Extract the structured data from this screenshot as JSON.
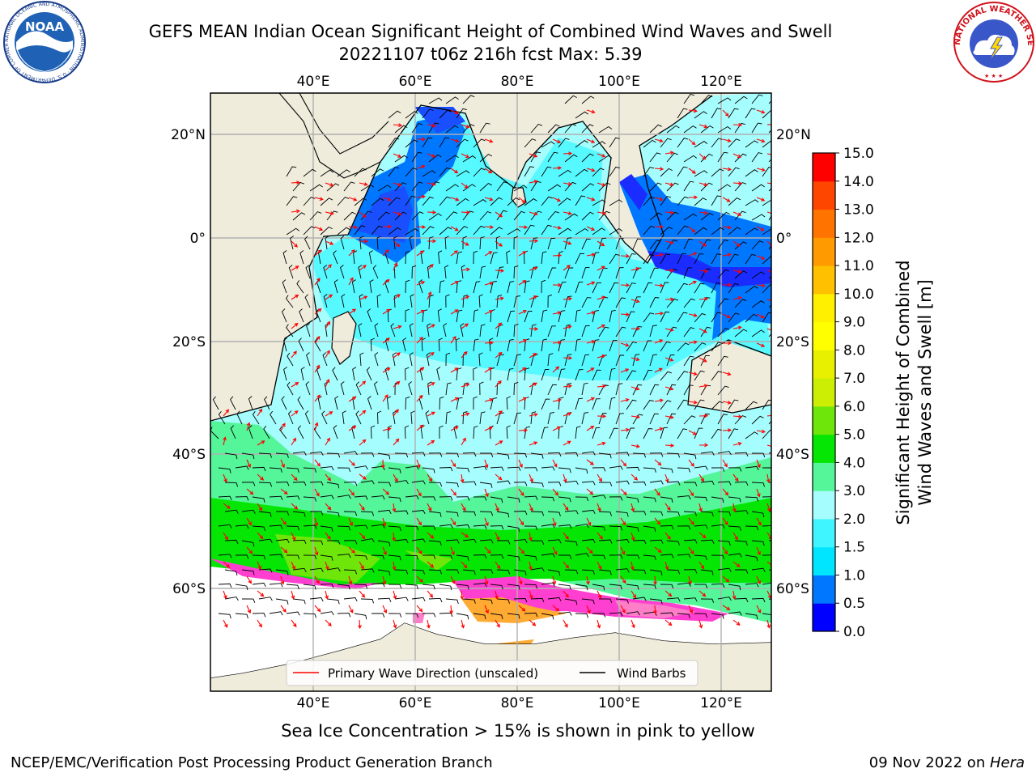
{
  "header": {
    "title_line1": "GEFS MEAN Indian Ocean Significant Height of Combined Wind Waves and Swell",
    "title_line2": "20221107 t06z 216h fcst   Max: 5.39"
  },
  "logos": {
    "noaa_text": "NOAA",
    "noaa_ring_text": "NATIONAL OCEANIC AND ATMOSPHERIC ADMINISTRATION · U.S. DEPARTMENT OF COMMERCE",
    "nws_ring_text": "NATIONAL WEATHER SERVICE"
  },
  "map": {
    "lon_range": [
      20,
      130
    ],
    "lat_range": [
      -75,
      27
    ],
    "lon_ticks": [
      "40°E",
      "60°E",
      "80°E",
      "100°E",
      "120°E"
    ],
    "lon_tick_values": [
      40,
      60,
      80,
      100,
      120
    ],
    "lat_ticks": [
      "20°N",
      "0°",
      "20°S",
      "40°S",
      "60°S"
    ],
    "lat_tick_values": [
      20,
      0,
      -20,
      -40,
      -60
    ],
    "grid": true,
    "colors": {
      "land": "#efecdc",
      "ice_white": "#ffffff",
      "barb": "#000000",
      "wave_arrow": "#ff0000"
    }
  },
  "legend": {
    "position": "bottom-center",
    "primary_wave_label": "Primary Wave Direction (unscaled)",
    "wind_barbs_label": "Wind Barbs"
  },
  "colorbar": {
    "label_line1": "Significant Height of Combined",
    "label_line2": "Wind Waves and Swell [m]",
    "tick_labels": [
      "0.0",
      "0.5",
      "1.0",
      "1.5",
      "2.0",
      "3.0",
      "4.0",
      "5.0",
      "6.0",
      "7.0",
      "8.0",
      "9.0",
      "10.0",
      "11.0",
      "12.0",
      "13.0",
      "14.0",
      "15.0"
    ],
    "colors": [
      "#0000ff",
      "#0077ff",
      "#00e5ff",
      "#3ff5ff",
      "#a5fdfd",
      "#55f59a",
      "#05e605",
      "#6ee60a",
      "#cbee04",
      "#e8f000",
      "#ffff00",
      "#fff000",
      "#ffc000",
      "#ff9b00",
      "#ff7300",
      "#ff4600",
      "#ff0000"
    ]
  },
  "chart_data": {
    "type": "heatmap",
    "title": "GEFS MEAN Indian Ocean Significant Height of Combined Wind Waves and Swell",
    "subtitle": "20221107 t06z 216h fcst   Max: 5.39",
    "xlabel": "",
    "ylabel": "",
    "xlim": [
      20,
      130
    ],
    "ylim": [
      -75,
      27
    ],
    "colorbar_range": [
      0,
      15
    ],
    "units": "m",
    "max_value": 5.39
  },
  "caption": "Sea Ice Concentration > 15% is shown in pink to yellow",
  "footer": {
    "left": "NCEP/EMC/Verification Post Processing Product Generation Branch",
    "right_prefix": "09 Nov 2022 on ",
    "right_host": "Hera"
  }
}
